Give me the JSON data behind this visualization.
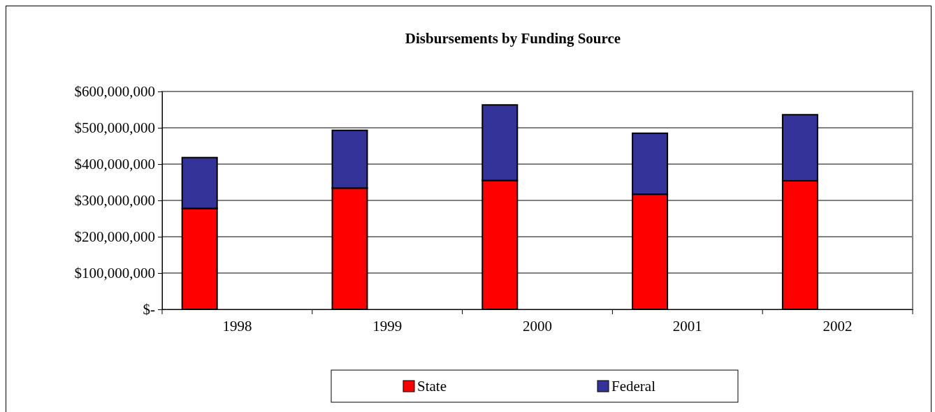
{
  "chart_data": {
    "type": "bar",
    "title": "Disbursements by Funding Source",
    "categories": [
      "1998",
      "1999",
      "2000",
      "2001",
      "2002"
    ],
    "stacked": true,
    "series": [
      {
        "name": "State",
        "color": "#ff0000",
        "values": [
          278000000,
          334000000,
          355000000,
          317000000,
          354000000
        ]
      },
      {
        "name": "Federal",
        "color": "#333399",
        "values": [
          140000000,
          159000000,
          208000000,
          168000000,
          182000000
        ]
      }
    ],
    "ylim": [
      0,
      600000000
    ],
    "yticks": [
      {
        "value": 0,
        "label": "$-"
      },
      {
        "value": 100000000,
        "label": "$100,000,000"
      },
      {
        "value": 200000000,
        "label": "$200,000,000"
      },
      {
        "value": 300000000,
        "label": "$300,000,000"
      },
      {
        "value": 400000000,
        "label": "$400,000,000"
      },
      {
        "value": 500000000,
        "label": "$500,000,000"
      },
      {
        "value": 600000000,
        "label": "$600,000,000"
      }
    ],
    "grid": "y",
    "legend": "bottom"
  }
}
